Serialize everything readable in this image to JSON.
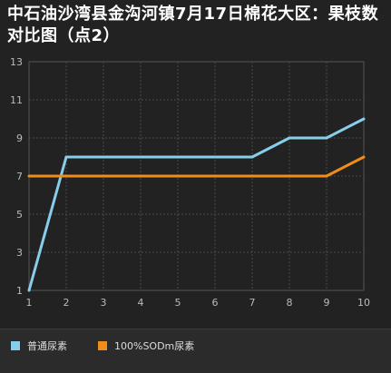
{
  "title": "中石油沙湾县金沟河镇7月17日棉花大区：果枝数对比图（点2）",
  "chart_data": {
    "type": "line",
    "title": "中石油沙湾县金沟河镇7月17日棉花大区：果枝数对比图（点2）",
    "xlabel": "",
    "ylabel": "",
    "x": [
      1,
      2,
      3,
      4,
      5,
      6,
      7,
      8,
      9,
      10
    ],
    "xlim": [
      1,
      10
    ],
    "ylim": [
      1,
      13
    ],
    "yticks": [
      1,
      3,
      5,
      7,
      9,
      11,
      13
    ],
    "grid": true,
    "legend_position": "bottom-left",
    "series": [
      {
        "name": "普通尿素",
        "color": "#87ceeb",
        "values": [
          1,
          8,
          8,
          8,
          8,
          8,
          8,
          9,
          9,
          10
        ]
      },
      {
        "name": "100%SODm尿素",
        "color": "#f08c1a",
        "values": [
          7,
          7,
          7,
          7,
          7,
          7,
          7,
          7,
          7,
          8
        ]
      }
    ]
  }
}
